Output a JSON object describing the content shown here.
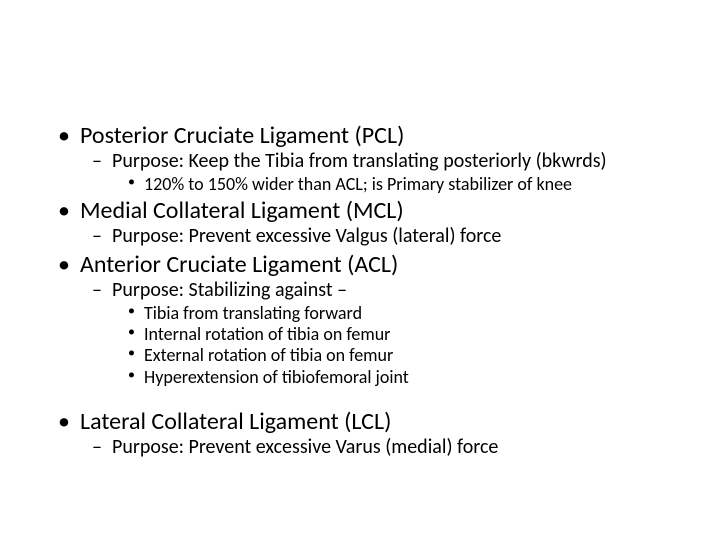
{
  "slide": {
    "background_color": "#ffffff",
    "text_color": "#000000",
    "font_family": "Calibri",
    "fontsize_l1": 24,
    "fontsize_l2": 20,
    "fontsize_l3": 18,
    "bullets_l1": "•",
    "bullets_l2": "–",
    "bullets_l3": "•",
    "items": [
      {
        "text": "Posterior Cruciate Ligament (PCL)",
        "sub": [
          {
            "text": "Purpose: Keep the Tibia from translating posteriorly (bkwrds)",
            "sub": [
              {
                "text": "120% to 150% wider than ACL; is Primary stabilizer of knee"
              }
            ]
          }
        ]
      },
      {
        "text": "Medial Collateral Ligament (MCL)",
        "sub": [
          {
            "text": "Purpose: Prevent excessive Valgus (lateral) force"
          }
        ]
      },
      {
        "text": "Anterior Cruciate Ligament (ACL)",
        "sub": [
          {
            "text": "Purpose: Stabilizing against –",
            "sub": [
              {
                "text": " Tibia from translating forward"
              },
              {
                "text": "Internal rotation of tibia on femur"
              },
              {
                "text": "External rotation of tibia on femur"
              },
              {
                "text": "Hyperextension of tibiofemoral joint"
              }
            ]
          }
        ]
      },
      {
        "text": "Lateral Collateral Ligament (LCL)",
        "gap_before": true,
        "sub": [
          {
            "text": "Purpose: Prevent excessive Varus (medial) force"
          }
        ]
      }
    ]
  }
}
